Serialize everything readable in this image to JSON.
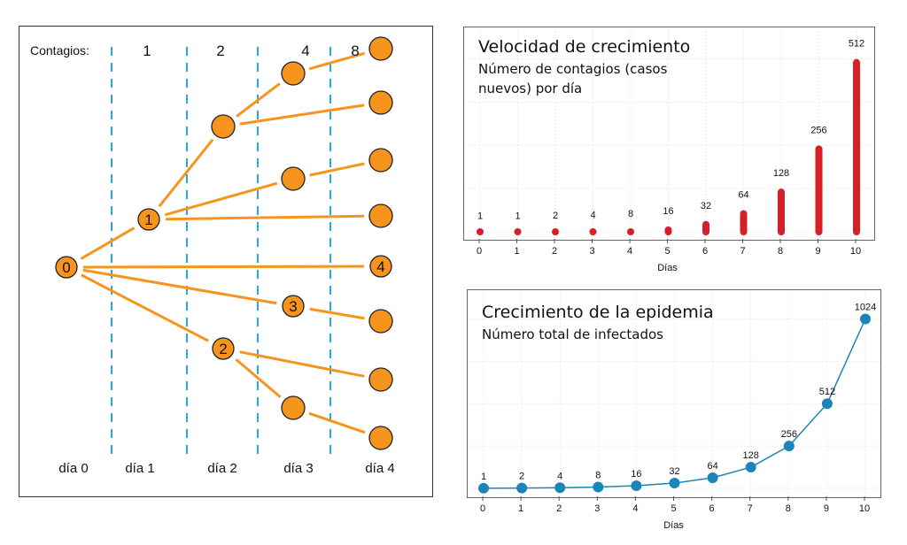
{
  "tree_diagram": {
    "contagios_label": "Contagios:",
    "column_counts": [
      "1",
      "2",
      "4",
      "8"
    ],
    "day_labels": [
      "día 0",
      "día 1",
      "día 2",
      "día 3",
      "día 4"
    ],
    "numbered_nodes": [
      "0",
      "1",
      "2",
      "3",
      "4"
    ],
    "colors": {
      "node": "#f7941d",
      "edge": "#f7941d",
      "divider": "#29a8d8"
    }
  },
  "chart_data": [
    {
      "type": "bar",
      "title": "Velocidad de crecimiento",
      "subtitle_lines": [
        "Número de contagios (casos",
        "nuevos) por día"
      ],
      "xlabel": "Días",
      "ylabel": "",
      "categories": [
        "0",
        "1",
        "2",
        "3",
        "4",
        "5",
        "6",
        "7",
        "8",
        "9",
        "10"
      ],
      "values": [
        1,
        1,
        2,
        4,
        8,
        16,
        32,
        64,
        128,
        256,
        512
      ],
      "ylim": [
        0,
        540
      ],
      "grid": true,
      "color": "#d62027"
    },
    {
      "type": "line",
      "title": "Crecimiento de la epidemia",
      "subtitle_lines": [
        "Número total de infectados"
      ],
      "xlabel": "Días",
      "ylabel": "",
      "x": [
        "0",
        "1",
        "2",
        "3",
        "4",
        "5",
        "6",
        "7",
        "8",
        "9",
        "10"
      ],
      "values": [
        1,
        2,
        4,
        8,
        16,
        32,
        64,
        128,
        256,
        512,
        1024
      ],
      "ylim": [
        0,
        1080
      ],
      "grid": true,
      "color": "#1a86b8"
    }
  ]
}
